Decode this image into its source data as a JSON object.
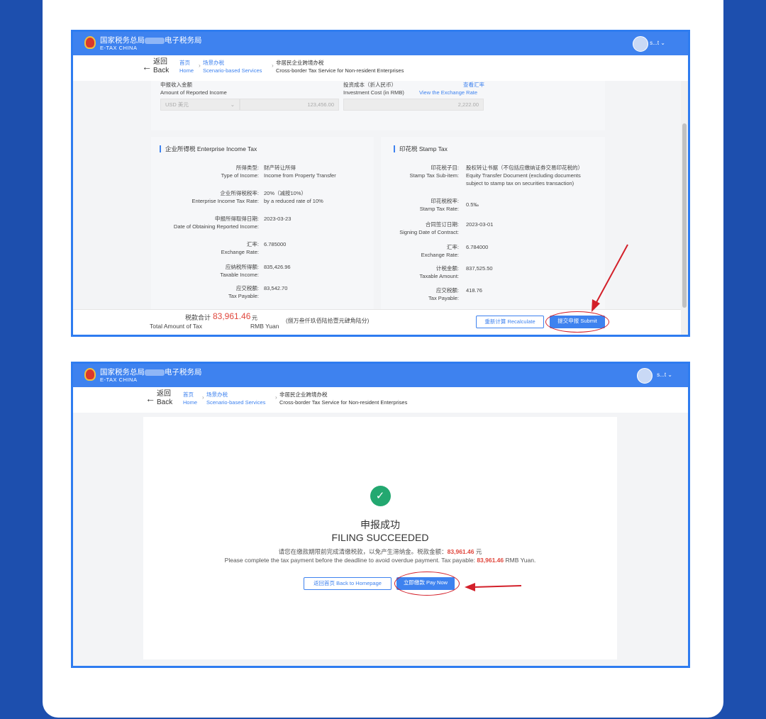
{
  "header": {
    "brand_cn_prefix": "国家税务总局",
    "brand_cn_suffix": "电子税务局",
    "brand_en": "E-TAX  CHINA",
    "user": "s...t"
  },
  "nav": {
    "back_cn": "返回",
    "back_en": "Back",
    "home_cn": "首页",
    "home_en": "Home",
    "scenario_cn": "场景办税",
    "scenario_en": "Scenario-based Services",
    "current_cn": "非居民企业跨境办税",
    "current_en": "Cross-border Tax Service for Non-resident Enterprises"
  },
  "form": {
    "income_label_cn": "申报收入金额",
    "income_label_en": "Amount of Reported Income",
    "currency": "USD 美元",
    "income_value": "123,456.00",
    "cost_label_cn": "投资成本（折人民币）",
    "cost_label_en": "Investment Cost (in RMB)",
    "rate_link_cn": "查看汇率",
    "rate_link_en": "View the Exchange Rate",
    "cost_value": "2,222.00"
  },
  "eit": {
    "title": "企业所得税 Enterprise Income Tax",
    "rows": [
      {
        "cn": "所得类型:",
        "en": "Type of Income:",
        "v1": "财产转让所得",
        "v2": "Income from Property Transfer"
      },
      {
        "cn": "企业所得税税率:",
        "en": "Enterprise Income Tax Rate:",
        "v1": "20%（减按10%）",
        "v2": "by a reduced rate of 10%"
      },
      {
        "cn": "申报所得取得日期:",
        "en": "Date of Obtaining Reported Income:",
        "v1": "2023-03-23",
        "v2": ""
      },
      {
        "cn": "汇率:",
        "en": "Exchange Rate:",
        "v1": "6.785000",
        "v2": ""
      },
      {
        "cn": "应纳税所得额:",
        "en": "Taxable Income:",
        "v1": "835,426.96",
        "v2": ""
      },
      {
        "cn": "应交税额:",
        "en": "Tax Payable:",
        "v1": "83,542.70",
        "v2": ""
      }
    ]
  },
  "stamp": {
    "title": "印花税 Stamp Tax",
    "rows": [
      {
        "cn": "印花税子目:",
        "en": "Stamp Tax Sub-item:",
        "v1": "股权转让书据（不包括应缴纳证券交易印花税的）",
        "v2": "Equity Transfer Document (excluding documents",
        "v3": "subject to stamp tax on securities transaction)"
      },
      {
        "cn": "印花税税率:",
        "en": "Stamp Tax Rate:",
        "v1": "0.5‰",
        "v2": "",
        "v3": ""
      },
      {
        "cn": "合同签订日期:",
        "en": "Signing Date of Contract:",
        "v1": "2023-03-01",
        "v2": "",
        "v3": ""
      },
      {
        "cn": "汇率:",
        "en": "Exchange Rate:",
        "v1": "6.784000",
        "v2": "",
        "v3": ""
      },
      {
        "cn": "计税金额:",
        "en": "Taxable Amount:",
        "v1": "837,525.50",
        "v2": "",
        "v3": ""
      },
      {
        "cn": "应交税额:",
        "en": "Tax Payable:",
        "v1": "418.76",
        "v2": "",
        "v3": ""
      }
    ]
  },
  "footer": {
    "total_cn": "税款合计",
    "total_en": "Total Amount of Tax",
    "amount": "83,961.46",
    "unit_cn": "元",
    "unit_en": "RMB Yuan",
    "amount_words": "(捌万叁仟玖佰陆拾壹元肆角陆分)",
    "recalc": "重新计算 Recalculate",
    "submit": "提交申报 Submit"
  },
  "success": {
    "title_cn": "申报成功",
    "title_en": "FILING SUCCEEDED",
    "msg_cn_pre": "请您在缴款期限前完成清缴税款，以免产生滞纳金。税款金额：",
    "msg_cn_post": " 元",
    "msg_en_pre": "Please complete the tax payment before the deadline to avoid overdue payment. Tax payable: ",
    "msg_en_post": " RMB Yuan.",
    "amount": "83,961.46",
    "back_home": "返回首页 Back to Homepage",
    "pay_now": "立即缴款 Pay Now"
  },
  "colors": {
    "brand": "#3e82ef",
    "accent_red": "#e0463c",
    "success": "#23a870",
    "annotation": "#d3202a"
  }
}
